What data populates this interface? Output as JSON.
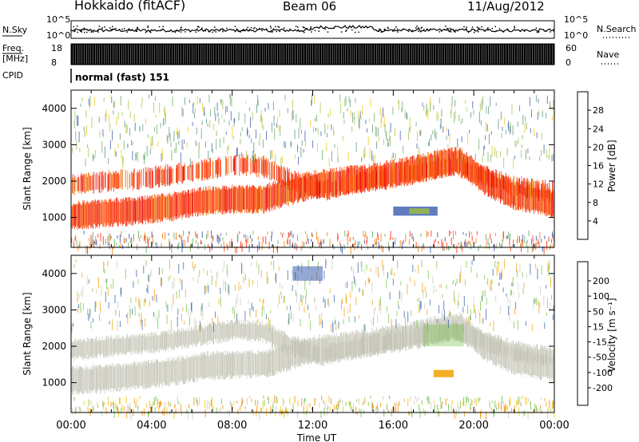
{
  "header": {
    "title": "Hokkaido (fitACF)",
    "beam": "Beam 06",
    "date": "11/Aug/2012"
  },
  "chart_data": [
    {
      "type": "line",
      "name": "nsky_panel",
      "ylabel": "N.Sky",
      "ylim_labels": [
        "10^0",
        "10^5"
      ],
      "right_labels": [
        "10^5",
        "10^0"
      ],
      "right_legend": "N.Search",
      "xlim": [
        0,
        24
      ]
    },
    {
      "type": "line",
      "name": "freq_panel",
      "ylabel_top": "Freq.",
      "ylabel_bottom": "[MHz]",
      "yticks_left": [
        "18",
        "8"
      ],
      "yticks_right": [
        "60",
        "0"
      ],
      "right_legend": "Nave",
      "cpid_label": "CPID",
      "cpid_text": "normal (fast) 151",
      "xlim": [
        0,
        24
      ]
    },
    {
      "type": "heatmap",
      "name": "power",
      "ylabel": "Slant Range [km]",
      "yticks": [
        1000,
        2000,
        3000,
        4000
      ],
      "ylim": [
        180,
        4500
      ],
      "xlim": [
        0,
        24
      ],
      "colorbar_label": "Power [dB]",
      "colorbar_ticks": [
        4,
        8,
        12,
        16,
        20,
        24,
        28
      ],
      "colorbar_range": [
        0,
        32
      ],
      "colorbar_colors": [
        "#0b12e0",
        "#2b4fa8",
        "#4a8a78",
        "#5fa55a",
        "#9fbf3a",
        "#f0c000",
        "#f0a000",
        "#f07800",
        "#ff4a00",
        "#ff2200",
        "#e00000"
      ],
      "bands": [
        {
          "x": [
            0,
            2.5,
            5,
            6.5,
            8,
            9.5,
            11,
            12,
            13.5,
            15,
            17,
            18.5,
            19.3,
            20.5,
            22,
            24
          ],
          "y": [
            1050,
            1150,
            1300,
            1450,
            1500,
            1500,
            1750,
            1900,
            2000,
            2100,
            2300,
            2500,
            2550,
            2000,
            1600,
            1400
          ]
        },
        {
          "x": [
            0,
            2,
            4,
            6,
            8,
            9.5,
            11,
            12.5,
            14,
            16,
            17.5,
            19,
            20.5,
            22,
            24
          ],
          "y": [
            1900,
            2000,
            2100,
            2250,
            2450,
            2400,
            2000,
            1750,
            1950,
            2150,
            2300,
            2450,
            2150,
            1850,
            1700
          ]
        }
      ]
    },
    {
      "type": "heatmap",
      "name": "velocity",
      "ylabel": "Slant Range [km]",
      "yticks": [
        1000,
        2000,
        3000,
        4000
      ],
      "ylim": [
        180,
        4500
      ],
      "xlim": [
        0,
        24
      ],
      "xticks": [
        "00:00",
        "04:00",
        "08:00",
        "12:00",
        "16:00",
        "20:00",
        "00:00"
      ],
      "xlabel": "Time UT",
      "colorbar_label": "Velocity [m s⁻¹]",
      "colorbar_ticks": [
        "200",
        "100",
        "50",
        "15",
        "-15",
        "-50",
        "-100",
        "-200"
      ],
      "colorbar_colors": [
        "#1a1ad0",
        "#2b5aa0",
        "#3a8a78",
        "#6fc040",
        "#c0c0b0",
        "#c8c8b8",
        "#f0c000",
        "#f08a00",
        "#ff5000",
        "#ff2000",
        "#ee0000"
      ]
    }
  ]
}
